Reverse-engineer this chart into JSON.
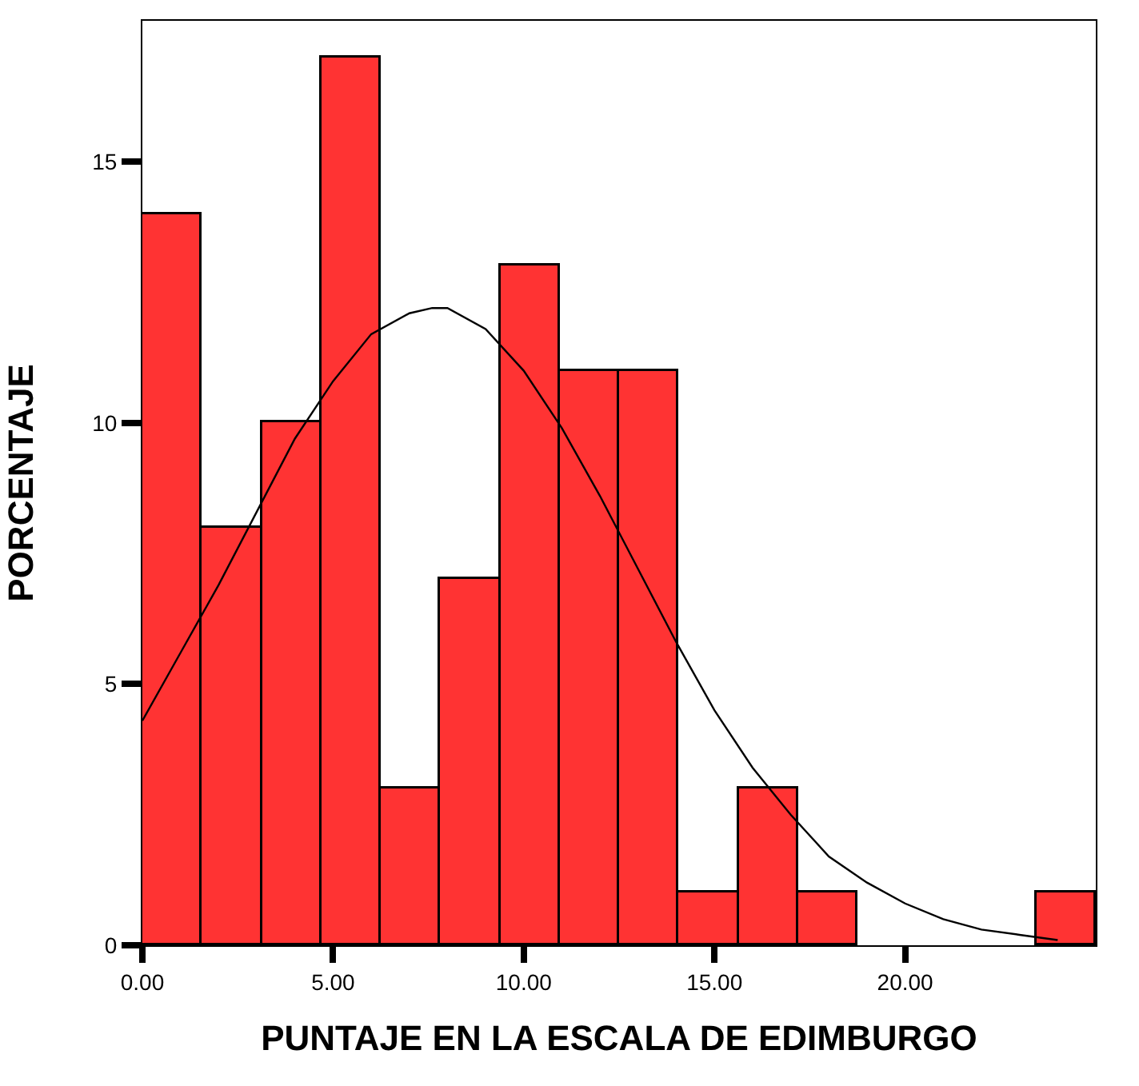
{
  "chart_data": {
    "type": "histogram",
    "xlabel": "PUNTAJE EN LA ESCALA DE EDIMBURGO",
    "ylabel": "PORCENTAJE",
    "bins": [
      0,
      1.5625,
      3.125,
      4.6875,
      6.25,
      7.8125,
      9.375,
      10.9375,
      12.5,
      14.0625,
      15.625,
      17.1875,
      18.75,
      20.3125,
      21.875,
      23.4375,
      25
    ],
    "values": [
      14,
      8,
      10,
      17,
      3,
      7,
      13,
      11,
      11,
      1,
      3,
      1,
      0,
      0,
      0,
      1
    ],
    "color": "#ff3333",
    "series": [
      {
        "type": "line",
        "color": "#000000",
        "x": [
          0,
          1,
          2,
          3,
          4,
          5,
          6,
          7,
          7.6,
          8,
          9,
          10,
          11,
          12,
          13,
          14,
          15,
          16,
          17,
          18,
          19,
          20,
          21,
          22,
          23,
          24
        ],
        "values": [
          4.3,
          5.6,
          6.9,
          8.3,
          9.7,
          10.8,
          11.7,
          12.1,
          12.2,
          12.2,
          11.8,
          11.0,
          9.9,
          8.6,
          7.2,
          5.8,
          4.5,
          3.4,
          2.5,
          1.7,
          1.2,
          0.8,
          0.5,
          0.3,
          0.2,
          0.1
        ]
      }
    ],
    "xlim": [
      0,
      25
    ],
    "ylim": [
      0,
      17.7
    ],
    "xticks": [
      {
        "value": 0,
        "label": "0.00"
      },
      {
        "value": 5,
        "label": "5.00"
      },
      {
        "value": 10,
        "label": "10.00"
      },
      {
        "value": 15,
        "label": "15.00"
      },
      {
        "value": 20,
        "label": "20.00"
      }
    ],
    "yticks": [
      0,
      5,
      10,
      15
    ]
  }
}
